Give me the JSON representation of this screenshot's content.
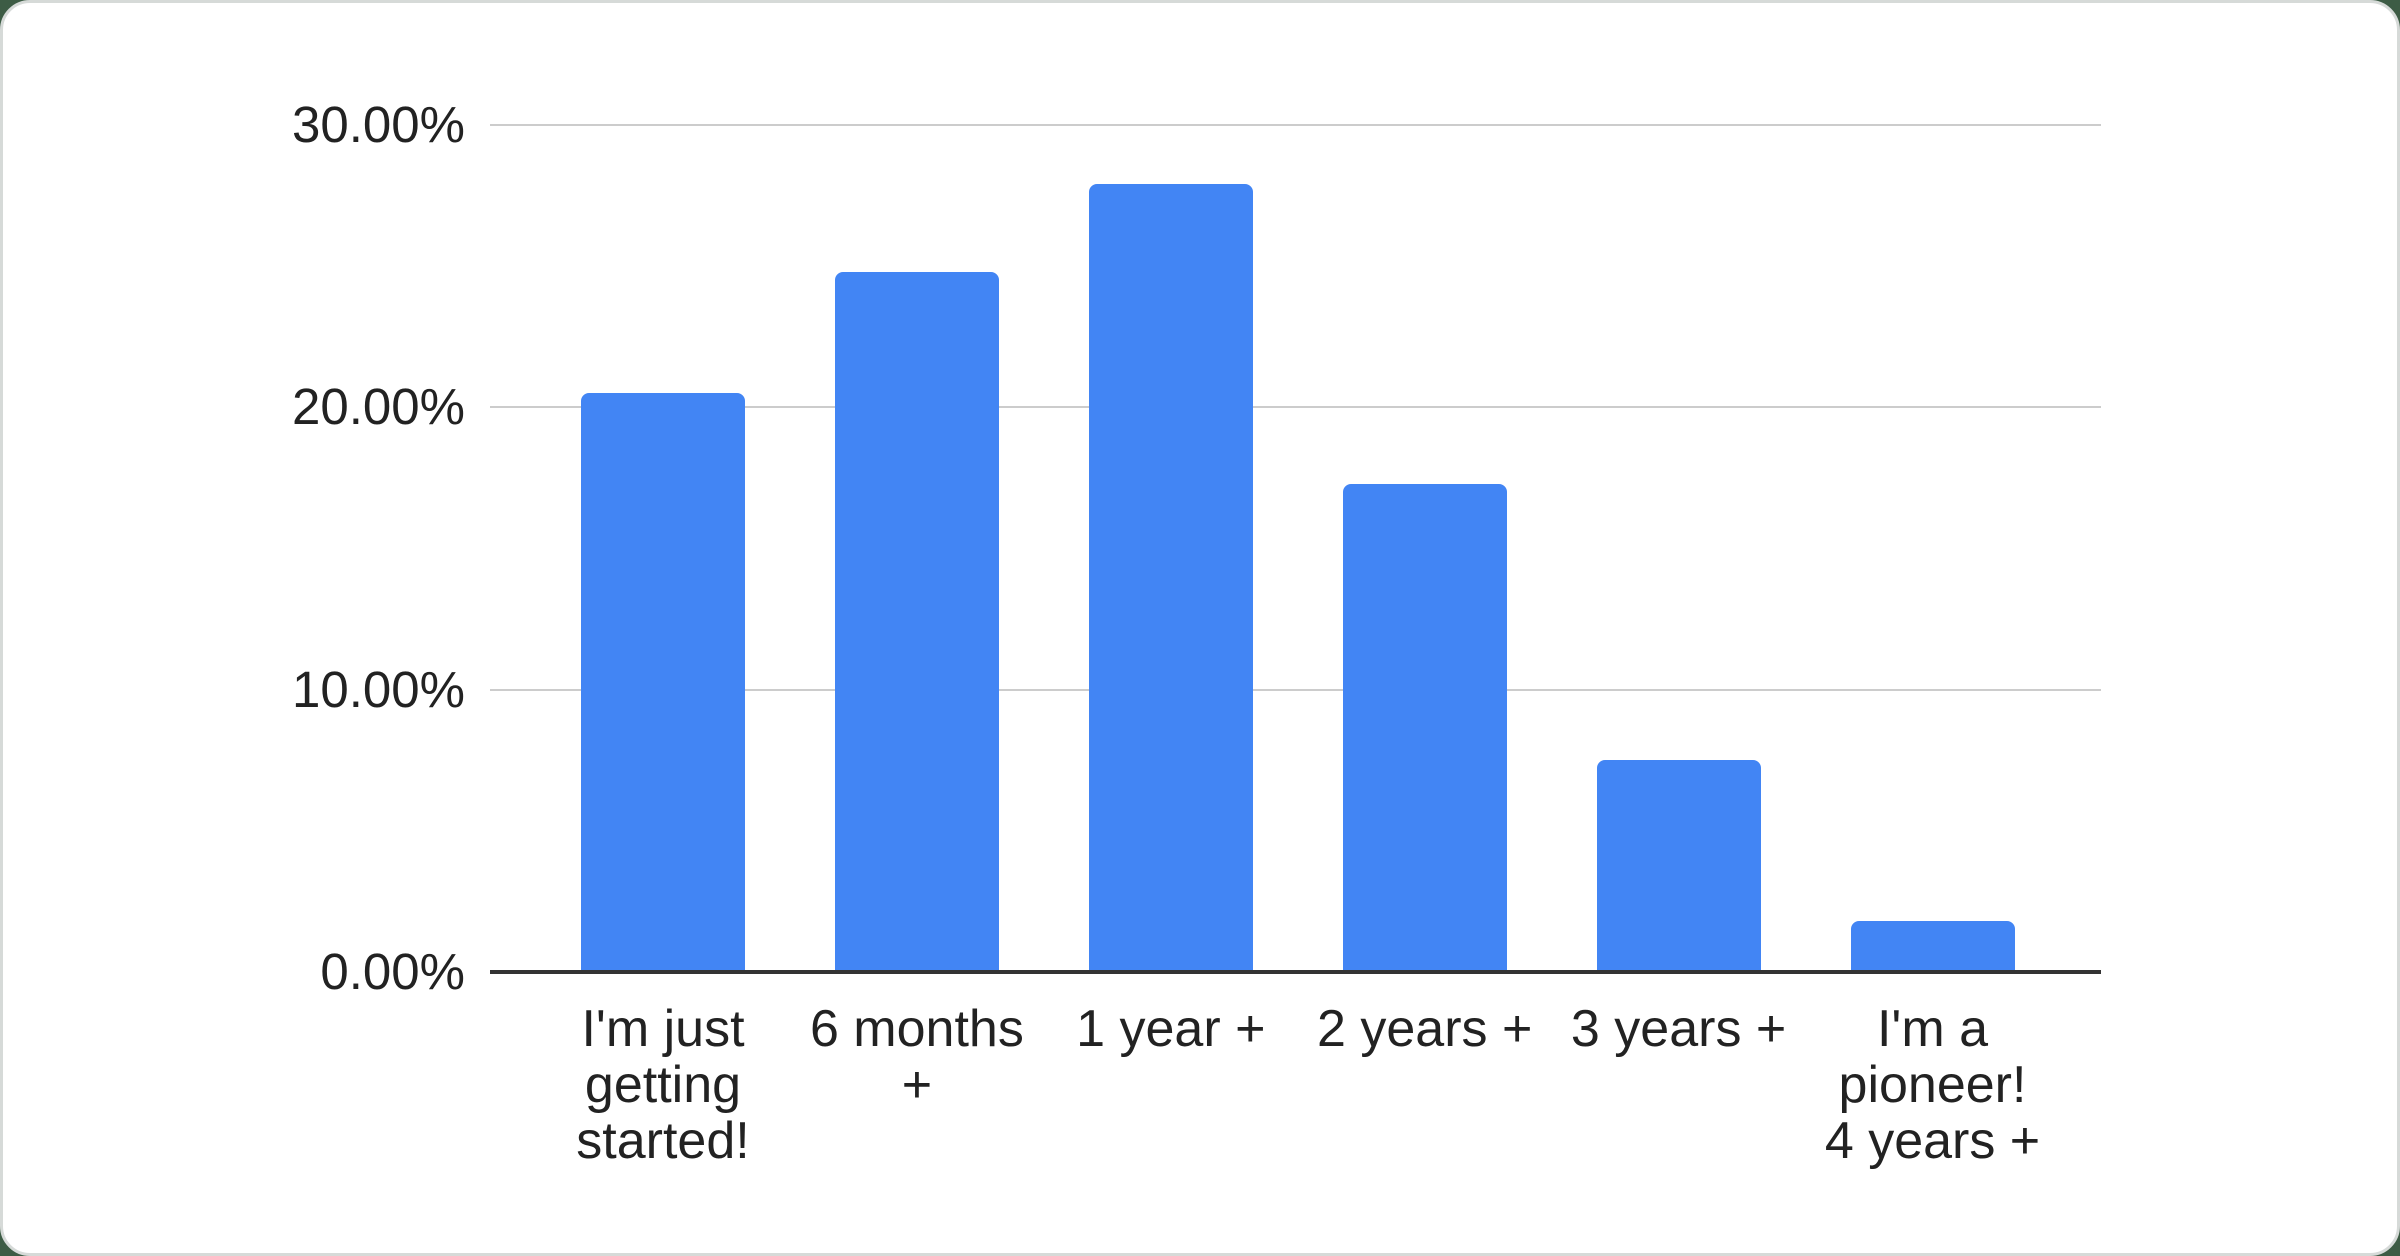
{
  "page": {
    "background_color": "#3d5c45",
    "card_background": "#ffffff",
    "card_border_color": "#d6dad8"
  },
  "chart_data": {
    "type": "bar",
    "title": "",
    "xlabel": "",
    "ylabel": "",
    "categories": [
      "I'm just getting started!",
      "6 months +",
      "1 year +",
      "2 years +",
      "3 years +",
      "I'm a pioneer! 4 years +"
    ],
    "category_lines": [
      [
        "I'm just",
        "getting",
        "started!"
      ],
      [
        "6 months",
        "+"
      ],
      [
        "1 year +"
      ],
      [
        "2 years +"
      ],
      [
        "3 years +"
      ],
      [
        "I'm a",
        "pioneer!",
        "4 years +"
      ]
    ],
    "values": [
      20.5,
      24.8,
      27.9,
      17.3,
      7.5,
      1.8
    ],
    "unit": "%",
    "ylim": [
      0,
      30
    ],
    "y_ticks": [
      "0.00%",
      "10.00%",
      "20.00%",
      "30.00%"
    ],
    "y_tick_values": [
      0,
      10,
      20,
      30
    ],
    "grid": true,
    "legend": "none",
    "bar_color": "#4285f4",
    "gridline_color": "#cccccc",
    "axis_line_color": "#333333",
    "label_color": "#222222"
  }
}
